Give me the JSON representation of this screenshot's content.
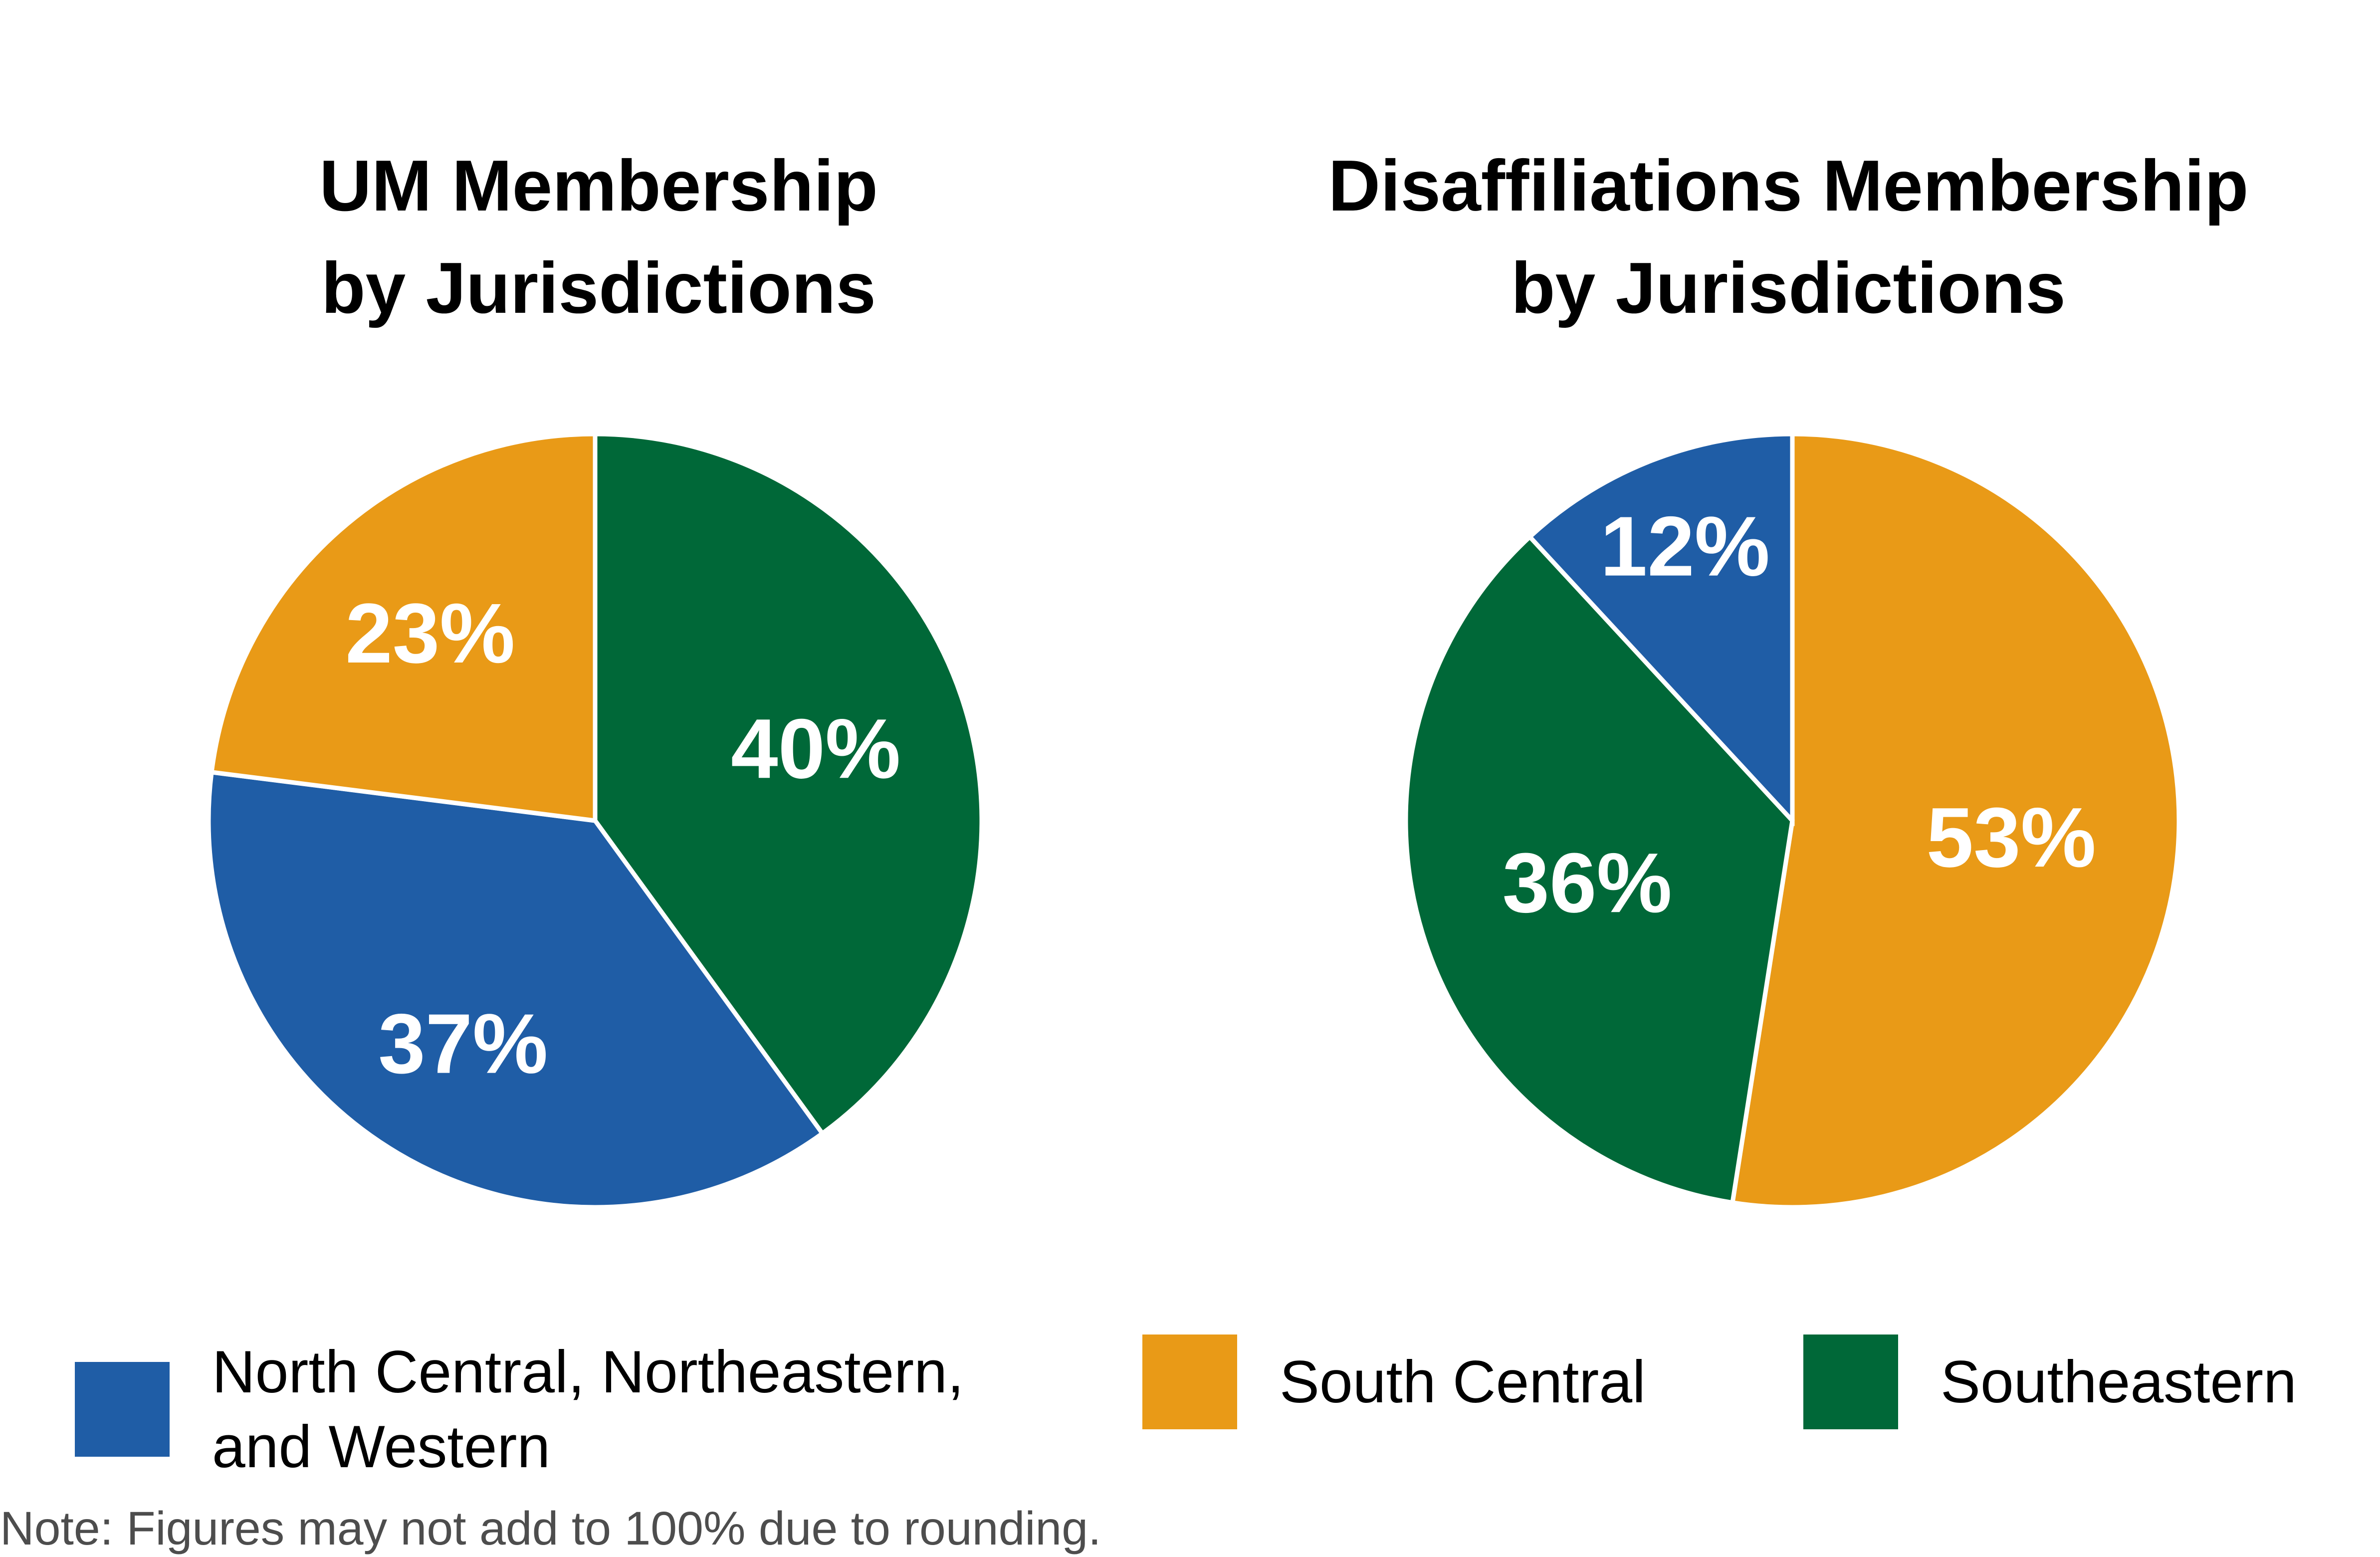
{
  "chart_data": [
    {
      "type": "pie",
      "title": "UM Membership\nby Jurisdictions",
      "slices": [
        {
          "label": "Southeastern",
          "value": 40,
          "display": "40%",
          "color": "#006838"
        },
        {
          "label": "North Central, Northeastern, and Western",
          "value": 37,
          "display": "37%",
          "color": "#1f5da6"
        },
        {
          "label": "South Central",
          "value": 23,
          "display": "23%",
          "color": "#e99a17"
        }
      ]
    },
    {
      "type": "pie",
      "title": "Disaffiliations Membership\nby Jurisdictions",
      "slices": [
        {
          "label": "South Central",
          "value": 53,
          "display": "53%",
          "color": "#e99a17"
        },
        {
          "label": "Southeastern",
          "value": 36,
          "display": "36%",
          "color": "#006838"
        },
        {
          "label": "North Central, Northeastern, and Western",
          "value": 12,
          "display": "12%",
          "color": "#1f5da6"
        }
      ]
    }
  ],
  "legend": [
    {
      "label": "North Central, Northeastern,\nand Western",
      "color": "#1f5da6"
    },
    {
      "label": "South Central",
      "color": "#e99a17"
    },
    {
      "label": "Southeastern",
      "color": "#006838"
    }
  ],
  "note": "Note: Figures may not add to 100% due to rounding."
}
